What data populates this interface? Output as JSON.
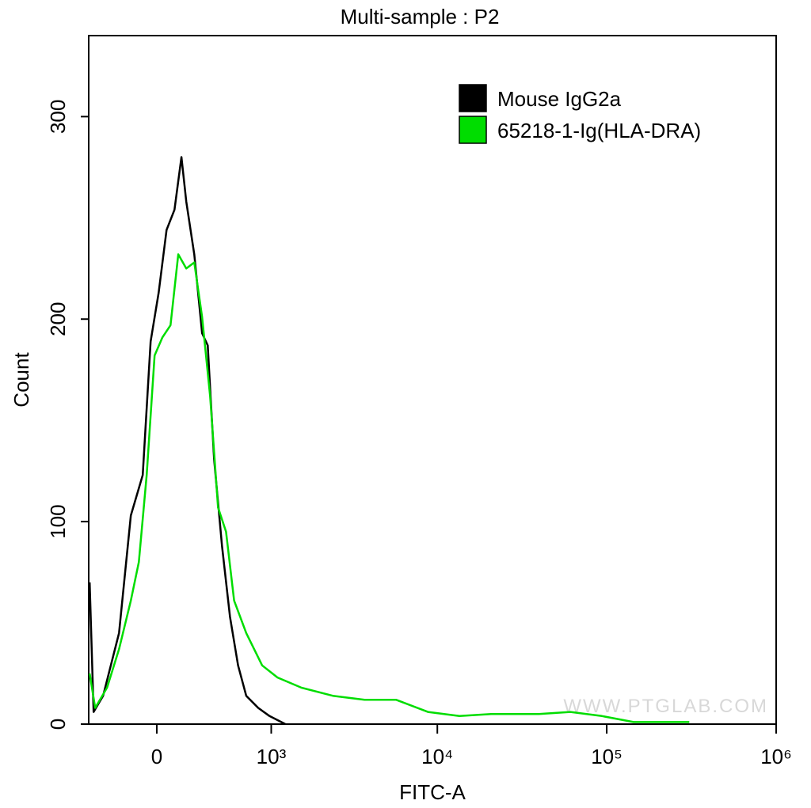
{
  "chart_data": {
    "type": "line",
    "title": "Multi-sample : P2",
    "x_label": "FITC-A",
    "y_label": "Count",
    "xscale": "biexponential",
    "xlim": [
      -470,
      1000000
    ],
    "ylim": [
      0,
      340
    ],
    "xticks": [
      0,
      {
        "value": 1000,
        "label": "10³"
      },
      {
        "value": 10000,
        "label": "10⁴"
      },
      {
        "value": 100000,
        "label": "10⁵"
      },
      {
        "value": 1000000,
        "label": "10⁶"
      }
    ],
    "yticks": [
      0,
      100,
      200,
      300
    ],
    "legend": "upper right",
    "watermark": "WWW.PTGLAB.COM",
    "series": [
      {
        "name": "Mouse IgG2a",
        "color": "#000000",
        "x": [
          -462,
          -428,
          -352,
          -237,
          -159,
          -85,
          -37,
          11,
          59,
          107,
          151,
          182,
          235,
          290,
          331,
          380,
          445,
          516,
          594,
          680,
          821,
          975,
          1229
        ],
        "values": [
          70,
          6,
          14,
          45,
          103,
          123,
          189,
          213,
          244,
          254,
          280,
          258,
          232,
          193,
          187,
          131,
          88,
          53,
          29,
          14,
          8,
          4,
          0
        ]
      },
      {
        "name": "65218-1-Ig(HLA-DRA)",
        "color": "#00dd00",
        "x": [
          -462,
          -415,
          -322,
          -237,
          -159,
          -109,
          -61,
          -13,
          34,
          83,
          131,
          182,
          235,
          290,
          349,
          412,
          480,
          555,
          680,
          872,
          1097,
          1543,
          2396,
          3708,
          5715,
          8800,
          13500,
          20800,
          39700,
          61000,
          93700,
          144000,
          307000
        ],
        "values": [
          25,
          8,
          18,
          37,
          61,
          80,
          123,
          182,
          191,
          197,
          232,
          225,
          228,
          201,
          162,
          107,
          95,
          61,
          45,
          29,
          23,
          18,
          14,
          12,
          12,
          6,
          4,
          5,
          5,
          6,
          4,
          1,
          1
        ]
      }
    ]
  }
}
